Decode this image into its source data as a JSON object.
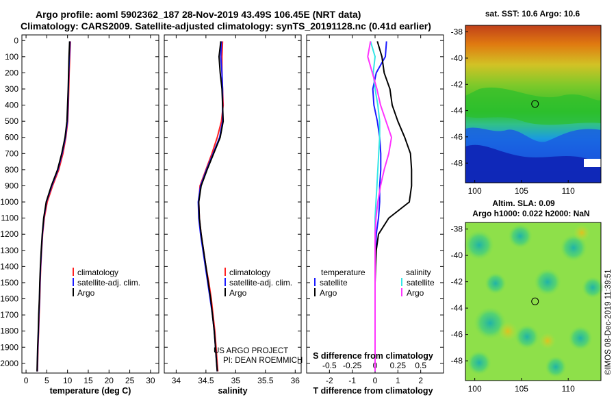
{
  "header": {
    "line1": "Argo profile: aoml 5902362_187 28-Nov-2019 43.49S 106.45E (NRT data)",
    "line2": "Climatology: CARS2009. Satellite-adjusted climatology: synTS_20191128.nc (0.41d earlier)"
  },
  "colors": {
    "climatology": "#ff2020",
    "satellite": "#1a1aff",
    "argo": "#000000",
    "sat_salinity": "#33e6e6",
    "argo_salinity": "#ff33ff"
  },
  "depth_axis": {
    "ticks": [
      "0",
      "100",
      "200",
      "300",
      "400",
      "500",
      "600",
      "700",
      "800",
      "900",
      "1000",
      "1100",
      "1200",
      "1300",
      "1400",
      "1500",
      "1600",
      "1700",
      "1800",
      "1900",
      "2000"
    ]
  },
  "chart_data": [
    {
      "type": "line",
      "name": "temperature-profile",
      "xlabel": "temperature (deg C)",
      "ylabel": "depth (dbar)",
      "xlim": [
        -1,
        32
      ],
      "ylim": [
        2060,
        -35
      ],
      "xticks": [
        "0",
        "5",
        "10",
        "15",
        "20",
        "25",
        "30"
      ],
      "depth": [
        5,
        100,
        200,
        300,
        400,
        500,
        600,
        700,
        800,
        900,
        1000,
        1100,
        1200,
        1300,
        1400,
        1500,
        1600,
        1700,
        1800,
        1900,
        2000,
        2050
      ],
      "series": [
        {
          "name": "climatology",
          "color": "#ff2020",
          "values": [
            10.7,
            10.55,
            10.4,
            10.3,
            10.2,
            10.05,
            9.6,
            8.9,
            7.9,
            6.4,
            5.1,
            4.4,
            4.0,
            3.75,
            3.55,
            3.4,
            3.3,
            3.15,
            3.05,
            2.9,
            2.8,
            2.75
          ]
        },
        {
          "name": "satellite-adj. clim.",
          "color": "#1a1aff",
          "values": [
            10.6,
            10.45,
            10.3,
            10.2,
            10.1,
            9.95,
            9.5,
            8.7,
            7.7,
            6.2,
            4.9,
            4.3,
            3.95,
            3.7,
            3.5,
            3.35,
            3.25,
            3.1,
            3.0,
            2.85,
            2.75,
            2.7
          ]
        },
        {
          "name": "Argo",
          "color": "#000000",
          "values": [
            10.5,
            10.35,
            10.25,
            10.15,
            10.0,
            9.85,
            9.4,
            8.6,
            7.6,
            6.1,
            4.85,
            4.25,
            3.9,
            3.65,
            3.45,
            3.3,
            3.2,
            3.05,
            2.95,
            2.8,
            2.7,
            2.65
          ]
        }
      ],
      "legend": [
        "climatology",
        "satellite-adj. clim.",
        "Argo"
      ]
    },
    {
      "type": "line",
      "name": "salinity-profile",
      "xlabel": "salinity",
      "xlim": [
        33.8,
        36.1
      ],
      "ylim": [
        2060,
        -35
      ],
      "xticks": [
        "34",
        "34.5",
        "35",
        "35.5",
        "36"
      ],
      "depth": [
        5,
        100,
        200,
        300,
        400,
        500,
        600,
        700,
        800,
        900,
        1000,
        1100,
        1200,
        1300,
        1400,
        1500,
        1600,
        1700,
        1800,
        1900,
        2000,
        2050
      ],
      "series": [
        {
          "name": "climatology",
          "color": "#ff2020",
          "values": [
            34.78,
            34.77,
            34.77,
            34.78,
            34.79,
            34.76,
            34.69,
            34.6,
            34.5,
            34.4,
            34.38,
            34.39,
            34.42,
            34.46,
            34.5,
            34.55,
            34.59,
            34.62,
            34.65,
            34.67,
            34.69,
            34.7
          ]
        },
        {
          "name": "satellite-adj. clim.",
          "color": "#1a1aff",
          "values": [
            34.76,
            34.75,
            34.77,
            34.78,
            34.78,
            34.78,
            34.73,
            34.62,
            34.51,
            34.41,
            34.37,
            34.38,
            34.41,
            34.45,
            34.49,
            34.53,
            34.57,
            34.61,
            34.64,
            34.66,
            34.68,
            34.69
          ]
        },
        {
          "name": "Argo",
          "color": "#000000",
          "values": [
            34.75,
            34.72,
            34.74,
            34.77,
            34.78,
            34.79,
            34.74,
            34.63,
            34.52,
            34.42,
            34.38,
            34.39,
            34.42,
            34.46,
            34.5,
            34.54,
            34.58,
            34.61,
            34.64,
            34.66,
            34.68,
            34.69
          ]
        }
      ],
      "legend": [
        "climatology",
        "satellite-adj. clim.",
        "Argo"
      ],
      "annotation": [
        "US ARGO PROJECT",
        "PI: DEAN ROEMMICH"
      ]
    },
    {
      "type": "line",
      "name": "difference-profile",
      "xlabel": "T difference from climatology",
      "top_label": "S difference from climatology",
      "xlim": [
        -3,
        3
      ],
      "ylim": [
        2060,
        -35
      ],
      "xticks": [
        "-2",
        "-1",
        "0",
        "1",
        "2"
      ],
      "top_ticks": [
        "-0.5",
        "-0.25",
        "0",
        "0.25",
        "0.5"
      ],
      "depth": [
        5,
        100,
        200,
        300,
        400,
        500,
        600,
        700,
        800,
        900,
        1000,
        1100,
        1200,
        1300,
        1400,
        1500,
        1600,
        1700,
        1800,
        1900,
        2000,
        2050
      ],
      "series": [
        {
          "name": "temperature satellite",
          "color": "#1a1aff",
          "values": [
            0.5,
            0.45,
            0.05,
            -0.1,
            -0.05,
            0.1,
            0.2,
            0.25,
            0.25,
            0.2,
            0.2,
            0.15,
            0.05,
            0.02,
            0.0,
            0.0,
            0.0,
            0.0,
            0.0,
            0.0,
            0.0,
            0.0
          ]
        },
        {
          "name": "temperature Argo",
          "color": "#000000",
          "values": [
            0.1,
            0.3,
            0.4,
            0.65,
            0.75,
            1.0,
            1.3,
            1.55,
            1.6,
            1.6,
            1.5,
            0.6,
            0.15,
            0.05,
            0.02,
            0.0,
            0.0,
            0.0,
            0.0,
            0.0,
            0.0,
            0.0
          ]
        },
        {
          "name": "salinity satellite",
          "color": "#33e6e6",
          "values": [
            -0.05,
            0.0,
            -0.02,
            0.0,
            0.03,
            0.05,
            0.05,
            0.04,
            0.03,
            0.02,
            0.01,
            0.0,
            0.0,
            0.0,
            0.0,
            0.0,
            0.0,
            0.0,
            0.0,
            0.0,
            0.0,
            0.0
          ]
        },
        {
          "name": "salinity Argo",
          "color": "#ff33ff",
          "values": [
            -0.05,
            -0.08,
            -0.03,
            0.02,
            0.06,
            0.12,
            0.18,
            0.15,
            0.1,
            0.06,
            0.03,
            0.01,
            0.0,
            0.0,
            0.0,
            0.0,
            0.0,
            0.0,
            0.0,
            0.0,
            0.0,
            0.0
          ]
        }
      ],
      "legend_headers": [
        "temperature",
        "salinity"
      ],
      "legend": [
        "satellite",
        "Argo",
        "satellite",
        "Argo"
      ]
    },
    {
      "type": "heatmap",
      "name": "sst-map",
      "title": "sat. SST: 10.6 Argo: 10.6",
      "xlim": [
        99,
        113.5
      ],
      "ylim": [
        -49.5,
        -37.5
      ],
      "xticks": [
        "100",
        "105",
        "110"
      ],
      "yticks": [
        "-38",
        "-40",
        "-42",
        "-44",
        "-46",
        "-48"
      ],
      "profile_marker": {
        "lon": 106.45,
        "lat": -43.49
      }
    },
    {
      "type": "heatmap",
      "name": "sla-map",
      "title_line1": "Altim. SLA: 0.09",
      "title_line2": "Argo h1000: 0.022 h2000: NaN",
      "xlim": [
        99,
        113.5
      ],
      "ylim": [
        -49.5,
        -37.5
      ],
      "xticks": [
        "100",
        "105",
        "110"
      ],
      "yticks": [
        "-38",
        "-40",
        "-42",
        "-44",
        "-46",
        "-48"
      ],
      "profile_marker": {
        "lon": 106.45,
        "lat": -43.49
      }
    }
  ],
  "footer": {
    "stamp": "©IMOS 08-Dec-2019 11:39:51"
  }
}
